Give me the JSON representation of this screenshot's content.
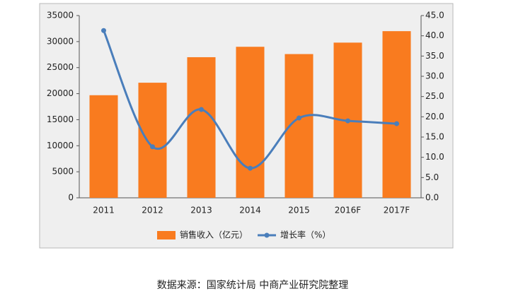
{
  "chart_data": {
    "type": "bar",
    "categories": [
      "2011",
      "2012",
      "2013",
      "2014",
      "2015",
      "2016F",
      "2017F"
    ],
    "series": [
      {
        "name": "销售收入（亿元）",
        "type": "bar",
        "color": "#f97b1f",
        "values": [
          19700,
          22100,
          27000,
          29000,
          27600,
          29800,
          32000
        ]
      },
      {
        "name": "增长率（%）",
        "type": "line",
        "axis": "y2",
        "color": "#4a7ebb",
        "values": [
          41.3,
          12.6,
          21.8,
          7.3,
          19.7,
          19.0,
          18.3
        ]
      }
    ],
    "ylim": [
      0,
      35000
    ],
    "yticks": [
      0,
      5000,
      10000,
      15000,
      20000,
      25000,
      30000,
      35000
    ],
    "y2lim": [
      0,
      45
    ],
    "y2ticks": [
      {
        "value": 0,
        "label": "0.0"
      },
      {
        "value": 5,
        "label": "5.0"
      },
      {
        "value": 10,
        "label": "10.0"
      },
      {
        "value": 15,
        "label": "15.0"
      },
      {
        "value": 20,
        "label": "20.0"
      },
      {
        "value": 25,
        "label": "25.0"
      },
      {
        "value": 30,
        "label": "30.0"
      },
      {
        "value": 35,
        "label": "35.0"
      },
      {
        "value": 40,
        "label": "40.0"
      },
      {
        "value": 45,
        "label": "45.0"
      }
    ],
    "legend": "bottom",
    "source": "数据来源：国家统计局 中商产业研究院整理"
  }
}
